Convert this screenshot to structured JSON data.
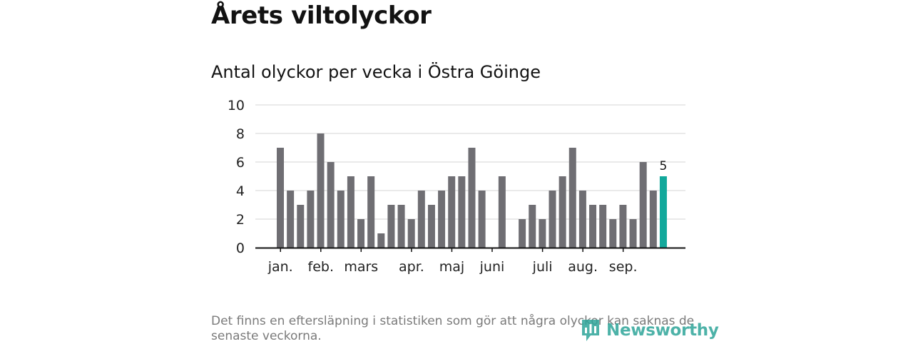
{
  "page_title": "Årets viltolyckor",
  "chart_data": {
    "type": "bar",
    "title": "Antal olyckor per vecka i Östra Göinge",
    "xlabel": "",
    "ylabel": "",
    "ylim": [
      0,
      10
    ],
    "yticks": [
      0,
      2,
      4,
      6,
      8,
      10
    ],
    "grid": true,
    "values": [
      7,
      4,
      3,
      4,
      8,
      6,
      4,
      5,
      2,
      5,
      1,
      3,
      3,
      2,
      4,
      3,
      4,
      5,
      5,
      7,
      4,
      0,
      5,
      0,
      2,
      3,
      2,
      4,
      5,
      7,
      4,
      3,
      3,
      2,
      3,
      2,
      6,
      4,
      5
    ],
    "month_labels": [
      {
        "label": "jan.",
        "week_index": 0.3
      },
      {
        "label": "feb.",
        "week_index": 4.3
      },
      {
        "label": "mars",
        "week_index": 8.3
      },
      {
        "label": "apr.",
        "week_index": 13.3
      },
      {
        "label": "maj",
        "week_index": 17.3
      },
      {
        "label": "juni",
        "week_index": 21.3
      },
      {
        "label": "juli",
        "week_index": 26.3
      },
      {
        "label": "aug.",
        "week_index": 30.3
      },
      {
        "label": "sep.",
        "week_index": 34.3
      }
    ],
    "highlight_index": 38,
    "highlight_label": "5",
    "colors": {
      "bar": "#6f6e73",
      "highlight": "#12a89b",
      "grid": "#d6d6d6",
      "axis": "#121212"
    }
  },
  "footnote": "Det finns en eftersläpning i statistiken som gör att några olyckor kan saknas de senaste veckorna.",
  "brand": {
    "name": "Newsworthy",
    "icon": "newsworthy-logo-icon",
    "color": "#2fa59a"
  }
}
